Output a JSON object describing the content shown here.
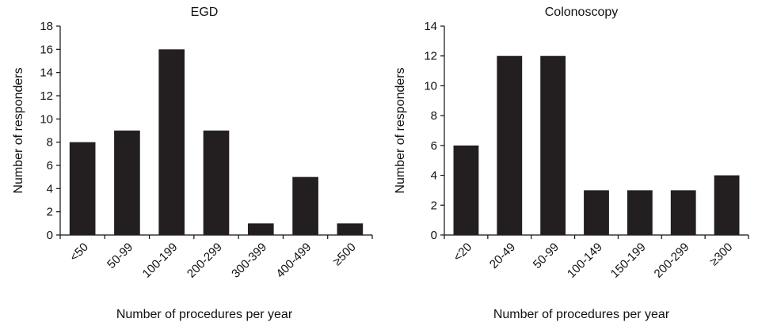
{
  "chart_data": [
    {
      "type": "bar",
      "title": "EGD",
      "xlabel": "Number of procedures per year",
      "ylabel": "Number of responders",
      "categories": [
        "<50",
        "50-99",
        "100-199",
        "200-299",
        "300-399",
        "400-499",
        "≥500"
      ],
      "values": [
        8,
        9,
        16,
        9,
        1,
        5,
        1
      ],
      "ylim": [
        0,
        18
      ],
      "yticks": [
        0,
        2,
        4,
        6,
        8,
        10,
        12,
        14,
        16,
        18
      ],
      "bar_color": "#231f20",
      "grid": false,
      "legend": "none"
    },
    {
      "type": "bar",
      "title": "Colonoscopy",
      "xlabel": "Number of procedures per year",
      "ylabel": "Number of responders",
      "categories": [
        "<20",
        "20-49",
        "50-99",
        "100-149",
        "150-199",
        "200-299",
        "≥300"
      ],
      "values": [
        6,
        12,
        12,
        3,
        3,
        3,
        4
      ],
      "ylim": [
        0,
        14
      ],
      "yticks": [
        0,
        2,
        4,
        6,
        8,
        10,
        12,
        14
      ],
      "bar_color": "#231f20",
      "grid": false,
      "legend": "none"
    }
  ]
}
